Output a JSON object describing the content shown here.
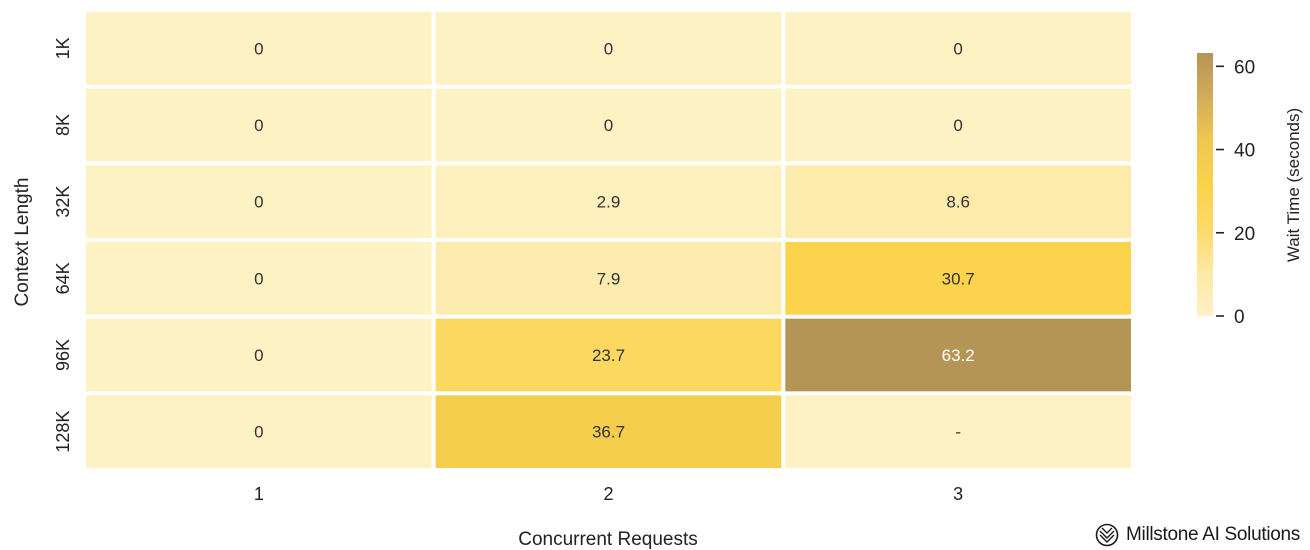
{
  "chart_data": {
    "type": "heatmap",
    "title": "",
    "xlabel": "Concurrent Requests",
    "ylabel": "Context Length",
    "x_categories": [
      "1",
      "2",
      "3"
    ],
    "y_categories": [
      "1K",
      "8K",
      "32K",
      "64K",
      "96K",
      "128K"
    ],
    "values": [
      [
        0,
        0,
        0
      ],
      [
        0,
        0,
        0
      ],
      [
        0,
        2.9,
        8.6
      ],
      [
        0,
        7.9,
        30.7
      ],
      [
        0,
        23.7,
        63.2
      ],
      [
        0,
        36.7,
        null
      ]
    ],
    "cell_labels": [
      [
        "0",
        "0",
        "0"
      ],
      [
        "0",
        "0",
        "0"
      ],
      [
        "0",
        "2.9",
        "8.6"
      ],
      [
        "0",
        "7.9",
        "30.7"
      ],
      [
        "0",
        "23.7",
        "63.2"
      ],
      [
        "0",
        "36.7",
        "-"
      ]
    ],
    "colorbar": {
      "label": "Wait Time (seconds)",
      "range": [
        0,
        63.2
      ],
      "ticks": [
        0,
        20,
        40,
        60
      ],
      "tick_labels": [
        "0",
        "20",
        "40",
        "60"
      ],
      "colors": [
        "#fdf2c4",
        "#fde9a6",
        "#fdda67",
        "#fbd24a",
        "#efc750",
        "#d2ac5a",
        "#b59556"
      ]
    },
    "missing_color": "#fdf2c4"
  },
  "brand": {
    "name": "Millstone AI Solutions",
    "icon": "millstone-logo-icon"
  }
}
